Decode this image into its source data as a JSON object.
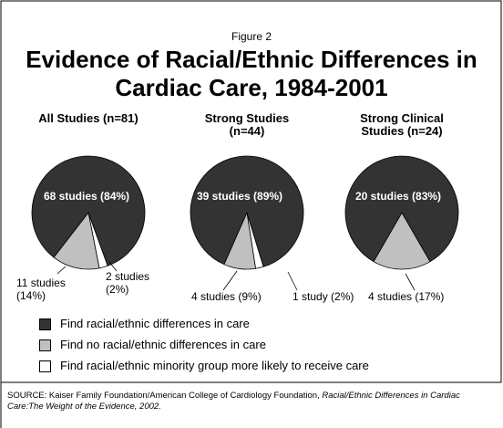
{
  "figure_label": "Figure 2",
  "title": "Evidence of Racial/Ethnic Differences in Cardiac Care, 1984-2001",
  "legend": [
    {
      "label": "Find racial/ethnic differences in care",
      "color": "#333333"
    },
    {
      "label": "Find no racial/ethnic differences in care",
      "color": "#c0c0c0"
    },
    {
      "label": "Find racial/ethnic minority group more likely to receive care",
      "color": "#ffffff"
    }
  ],
  "source": "SOURCE: Kaiser Family Foundation/American College of Cardiology Foundation, ",
  "source_title": "Racial/Ethnic Differences in Cardiac Care:The Weight of the Evidence, 2002.",
  "chart_data": [
    {
      "type": "pie",
      "title": "All Studies (n=81)",
      "values": [
        68,
        11,
        2
      ],
      "value_labels": [
        "68 studies (84%)",
        "11 studies (14%)",
        "2 studies (2%)"
      ]
    },
    {
      "type": "pie",
      "title": "Strong Studies (n=44)",
      "values": [
        39,
        4,
        1
      ],
      "value_labels": [
        "39 studies (89%)",
        "4 studies (9%)",
        "1 study (2%)"
      ]
    },
    {
      "type": "pie",
      "title": "Strong Clinical Studies (n=24)",
      "values": [
        20,
        4
      ],
      "value_labels": [
        "20 studies (83%)",
        "4 studies (17%)"
      ]
    }
  ]
}
